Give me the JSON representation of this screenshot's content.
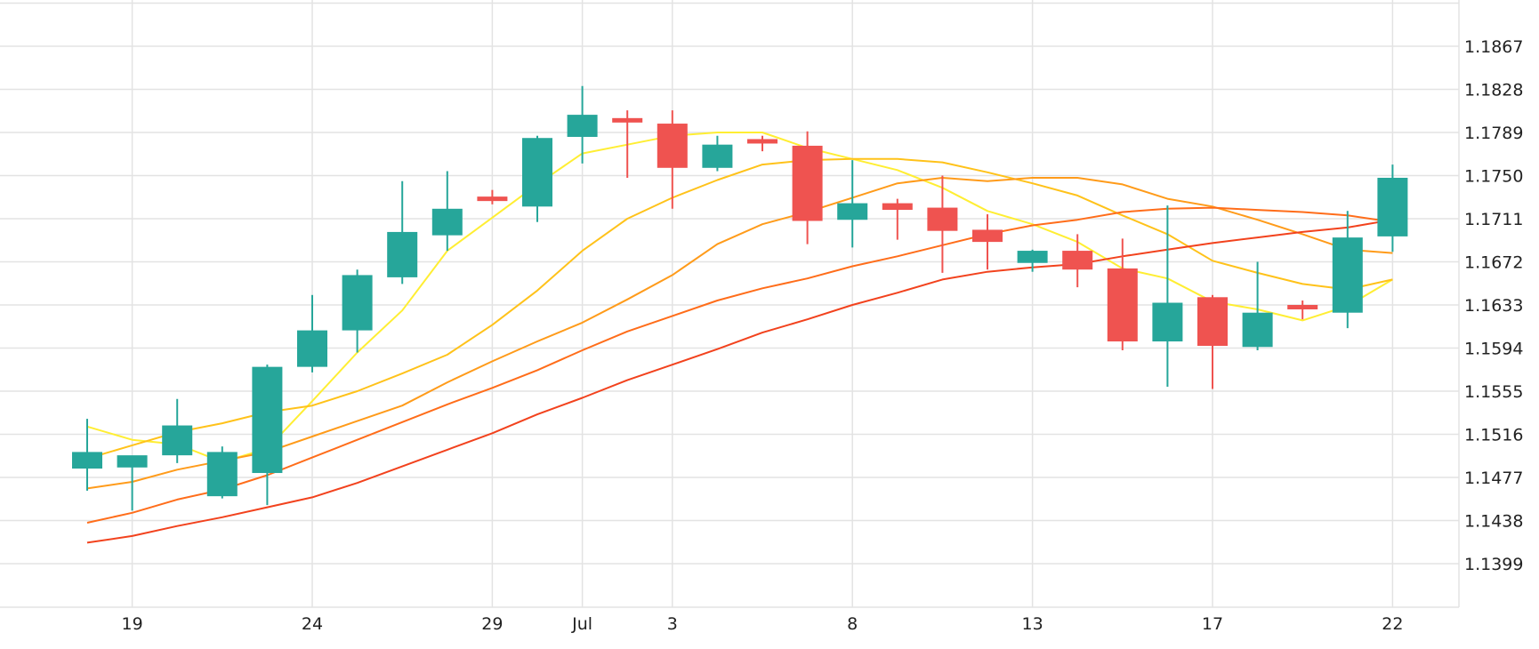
{
  "chart_data": {
    "type": "candlestick",
    "x_tick_labels": [
      "19",
      "24",
      "29",
      "Jul",
      "3",
      "8",
      "13",
      "17",
      "22"
    ],
    "x_tick_index": [
      1,
      5,
      9,
      11,
      13,
      17,
      21,
      25,
      29
    ],
    "y_tick_labels": [
      "1.1399",
      "1.1438",
      "1.1477",
      "1.1516",
      "1.1555",
      "1.1594",
      "1.1633",
      "1.1672",
      "1.1711",
      "1.1750",
      "1.1789",
      "1.1828",
      "1.1867"
    ],
    "y_ticks": [
      1.1399,
      1.1438,
      1.1477,
      1.1516,
      1.1555,
      1.1594,
      1.1633,
      1.1672,
      1.1711,
      1.175,
      1.1789,
      1.1828,
      1.1867
    ],
    "ylim": [
      1.1344,
      1.1907
    ],
    "up_color": "#26a69a",
    "down_color": "#ef5350",
    "ohlc": [
      {
        "open": 1.1485,
        "high": 1.153,
        "low": 1.1465,
        "close": 1.15
      },
      {
        "open": 1.1486,
        "high": 1.1495,
        "low": 1.1447,
        "close": 1.1497
      },
      {
        "open": 1.1497,
        "high": 1.1548,
        "low": 1.149,
        "close": 1.1524
      },
      {
        "open": 1.146,
        "high": 1.1505,
        "low": 1.1458,
        "close": 1.15
      },
      {
        "open": 1.1481,
        "high": 1.1579,
        "low": 1.1452,
        "close": 1.1577
      },
      {
        "open": 1.1577,
        "high": 1.1642,
        "low": 1.1572,
        "close": 1.161
      },
      {
        "open": 1.161,
        "high": 1.1665,
        "low": 1.159,
        "close": 1.166
      },
      {
        "open": 1.1658,
        "high": 1.1745,
        "low": 1.1652,
        "close": 1.1699
      },
      {
        "open": 1.1696,
        "high": 1.1754,
        "low": 1.1682,
        "close": 1.172
      },
      {
        "open": 1.1731,
        "high": 1.1737,
        "low": 1.1724,
        "close": 1.1728
      },
      {
        "open": 1.1722,
        "high": 1.1786,
        "low": 1.1708,
        "close": 1.1784
      },
      {
        "open": 1.1785,
        "high": 1.1831,
        "low": 1.1761,
        "close": 1.1805
      },
      {
        "open": 1.1802,
        "high": 1.1809,
        "low": 1.1748,
        "close": 1.1799
      },
      {
        "open": 1.1797,
        "high": 1.1809,
        "low": 1.172,
        "close": 1.1757
      },
      {
        "open": 1.1757,
        "high": 1.1786,
        "low": 1.1754,
        "close": 1.1778
      },
      {
        "open": 1.1783,
        "high": 1.1786,
        "low": 1.1772,
        "close": 1.1779
      },
      {
        "open": 1.1777,
        "high": 1.179,
        "low": 1.1688,
        "close": 1.1709
      },
      {
        "open": 1.171,
        "high": 1.1764,
        "low": 1.1685,
        "close": 1.1725
      },
      {
        "open": 1.1725,
        "high": 1.1729,
        "low": 1.1692,
        "close": 1.1719
      },
      {
        "open": 1.1721,
        "high": 1.175,
        "low": 1.1662,
        "close": 1.17
      },
      {
        "open": 1.1701,
        "high": 1.1715,
        "low": 1.1665,
        "close": 1.169
      },
      {
        "open": 1.1671,
        "high": 1.1683,
        "low": 1.1663,
        "close": 1.1682
      },
      {
        "open": 1.1682,
        "high": 1.1697,
        "low": 1.1649,
        "close": 1.1665
      },
      {
        "open": 1.1666,
        "high": 1.1693,
        "low": 1.1592,
        "close": 1.16
      },
      {
        "open": 1.16,
        "high": 1.1723,
        "low": 1.1559,
        "close": 1.1635
      },
      {
        "open": 1.164,
        "high": 1.1642,
        "low": 1.1557,
        "close": 1.1596
      },
      {
        "open": 1.1595,
        "high": 1.1672,
        "low": 1.1592,
        "close": 1.1626
      },
      {
        "open": 1.1633,
        "high": 1.1637,
        "low": 1.162,
        "close": 1.1629
      },
      {
        "open": 1.1626,
        "high": 1.1718,
        "low": 1.1612,
        "close": 1.1694
      },
      {
        "open": 1.1695,
        "high": 1.176,
        "low": 1.1681,
        "close": 1.1748
      }
    ],
    "moving_averages": [
      {
        "color": "#ffee33",
        "values": [
          1.1523,
          1.1511,
          1.1507,
          1.1491,
          1.1503,
          1.1546,
          1.159,
          1.1628,
          1.1682,
          1.1712,
          1.1742,
          1.177,
          1.1778,
          1.1786,
          1.1789,
          1.1789,
          1.1775,
          1.1765,
          1.1755,
          1.1739,
          1.1718,
          1.1706,
          1.169,
          1.1666,
          1.1657,
          1.1636,
          1.1629,
          1.1619,
          1.1632,
          1.1656
        ]
      },
      {
        "color": "#ffc21a",
        "values": [
          1.1494,
          1.1506,
          1.1518,
          1.1526,
          1.1536,
          1.1542,
          1.1555,
          1.1571,
          1.1588,
          1.1615,
          1.1646,
          1.1682,
          1.1711,
          1.173,
          1.1746,
          1.176,
          1.1764,
          1.1765,
          1.1765,
          1.1762,
          1.1753,
          1.1743,
          1.1732,
          1.1714,
          1.1697,
          1.1673,
          1.1662,
          1.1652,
          1.1647,
          1.1656
        ]
      },
      {
        "color": "#ff9b1a",
        "values": [
          1.1467,
          1.1473,
          1.1484,
          1.1492,
          1.15,
          1.1514,
          1.1528,
          1.1542,
          1.1563,
          1.1582,
          1.16,
          1.1617,
          1.1638,
          1.166,
          1.1688,
          1.1706,
          1.1717,
          1.173,
          1.1743,
          1.1748,
          1.1745,
          1.1748,
          1.1748,
          1.1742,
          1.1729,
          1.1722,
          1.171,
          1.1697,
          1.1683,
          1.168
        ]
      },
      {
        "color": "#ff6d1a",
        "values": [
          1.1436,
          1.1445,
          1.1457,
          1.1466,
          1.1479,
          1.1495,
          1.1511,
          1.1527,
          1.1543,
          1.1558,
          1.1574,
          1.1592,
          1.1609,
          1.1623,
          1.1637,
          1.1648,
          1.1657,
          1.1668,
          1.1677,
          1.1687,
          1.1697,
          1.1705,
          1.171,
          1.1717,
          1.172,
          1.1721,
          1.1719,
          1.1717,
          1.1714,
          1.1708
        ]
      },
      {
        "color": "#f2421d",
        "values": [
          1.1418,
          1.1424,
          1.1433,
          1.1441,
          1.145,
          1.1459,
          1.1472,
          1.1487,
          1.1502,
          1.1517,
          1.1534,
          1.1549,
          1.1565,
          1.1579,
          1.1593,
          1.1608,
          1.162,
          1.1633,
          1.1644,
          1.1656,
          1.1663,
          1.1667,
          1.167,
          1.1677,
          1.1683,
          1.1689,
          1.1694,
          1.1699,
          1.1703,
          1.171
        ]
      }
    ]
  }
}
